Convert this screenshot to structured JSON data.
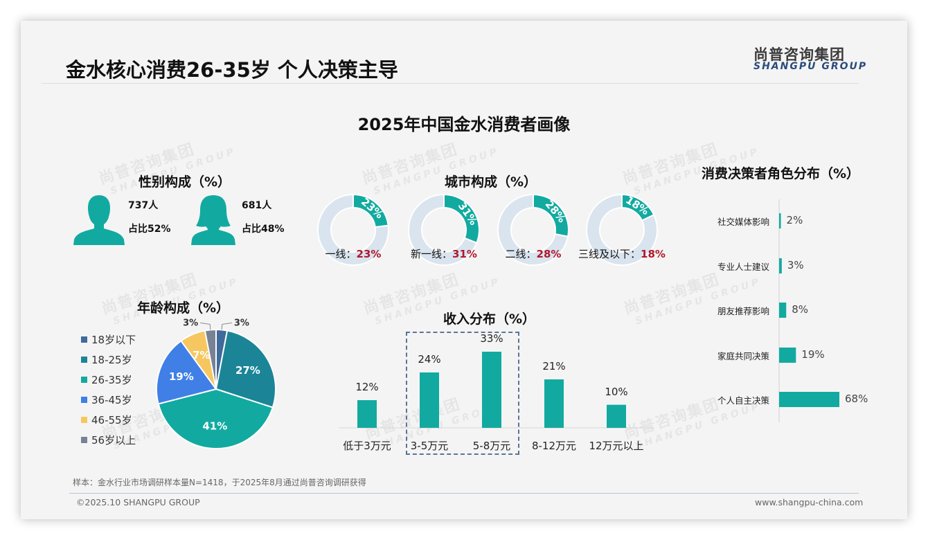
{
  "header": {
    "title": "金水核心消费26-35岁 个人决策主导",
    "logo_cn": "尚普咨询集团",
    "logo_en": "SHANGPU GROUP"
  },
  "main_title": "2025年中国金水消费者画像",
  "watermark": {
    "cn": "尚普咨询集团",
    "en": "SHANGPU GROUP"
  },
  "gender": {
    "title": "性别构成（%）",
    "male": {
      "count": "737人",
      "share": "占比52%"
    },
    "female": {
      "count": "681人",
      "share": "占比48%"
    }
  },
  "colors": {
    "teal": "#12aaa0",
    "donut_bg": "#d9e4ef",
    "highlight_red": "#b0182a",
    "dash_box": "#5a7494"
  },
  "chart_data": [
    {
      "id": "city",
      "type": "pie",
      "title": "城市构成（%）",
      "categories": [
        "一线",
        "新一线",
        "二线",
        "三线及以下"
      ],
      "values": [
        23,
        31,
        28,
        18
      ],
      "labels": [
        "23%",
        "31%",
        "28%",
        "18%"
      ],
      "caption_prefix": [
        "一线：",
        "新一线：",
        "二线：",
        "三线及以下："
      ]
    },
    {
      "id": "age",
      "type": "pie",
      "title": "年龄构成（%）",
      "categories": [
        "18岁以下",
        "18-25岁",
        "26-35岁",
        "36-45岁",
        "46-55岁",
        "56岁以上"
      ],
      "values": [
        3,
        27,
        41,
        19,
        7,
        3
      ],
      "labels": [
        "3%",
        "27%",
        "41%",
        "19%",
        "7%",
        "3%"
      ],
      "colors": [
        "#3f6a9a",
        "#1b8597",
        "#12aaa0",
        "#3f7fe6",
        "#f6c760",
        "#778395"
      ],
      "legend": "left"
    },
    {
      "id": "income",
      "type": "bar",
      "title": "收入分布（%）",
      "categories": [
        "低于3万元",
        "3-5万元",
        "5-8万元",
        "8-12万元",
        "12万元以上"
      ],
      "values": [
        12,
        24,
        33,
        21,
        10
      ],
      "labels": [
        "12%",
        "24%",
        "33%",
        "21%",
        "10%"
      ],
      "highlight": [
        "3-5万元",
        "5-8万元"
      ],
      "ylim": [
        0,
        40
      ]
    },
    {
      "id": "roles",
      "type": "bar",
      "orientation": "horizontal",
      "title": "消费决策者角色分布（%）",
      "categories": [
        "社交媒体影响",
        "专业人士建议",
        "朋友推荐影响",
        "家庭共同决策",
        "个人自主决策"
      ],
      "values": [
        2,
        3,
        8,
        19,
        68
      ],
      "labels": [
        "2%",
        "3%",
        "8%",
        "19%",
        "68%"
      ],
      "xlim": [
        0,
        100
      ]
    }
  ],
  "footer": {
    "note": "样本：金水行业市场调研样本量N=1418，于2025年8月通过尚普咨询调研获得",
    "copyright": "©2025.10 SHANGPU GROUP",
    "website": "www.shangpu-china.com"
  }
}
